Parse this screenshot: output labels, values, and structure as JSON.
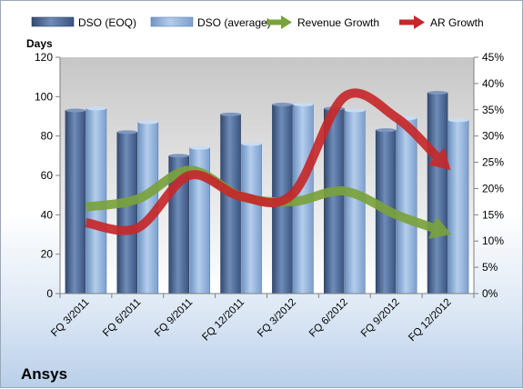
{
  "chart_data": {
    "type": "bar",
    "title": "Ansys",
    "ylabel": "Days",
    "ylim": [
      0,
      120
    ],
    "y_ticks": [
      "0",
      "20",
      "40",
      "60",
      "80",
      "100",
      "120"
    ],
    "y2lim": [
      0,
      45
    ],
    "y2_ticks": [
      "0%",
      "5%",
      "10%",
      "15%",
      "20%",
      "25%",
      "30%",
      "35%",
      "40%",
      "45%"
    ],
    "grid": false,
    "legend_position": "top",
    "categories": [
      "FQ 3/2011",
      "FQ 6/2011",
      "FQ 9/2011",
      "FQ 12/2011",
      "FQ 3/2012",
      "FQ 6/2012",
      "FQ 9/2012",
      "FQ 12/2012"
    ],
    "series": [
      {
        "name": "DSO (EOQ)",
        "type": "bar",
        "axis": "left",
        "color": "#4f6b97",
        "values": [
          93,
          82,
          70,
          91,
          96,
          94,
          83,
          102
        ]
      },
      {
        "name": "DSO (average)",
        "type": "bar",
        "axis": "left",
        "color": "#8fb2dc",
        "values": [
          94,
          87,
          74,
          76,
          96,
          93,
          89,
          88
        ]
      },
      {
        "name": "Revenue Growth",
        "type": "line-arrow",
        "axis": "right",
        "color": "#7aa23c",
        "values": [
          16.5,
          18,
          23.5,
          18.5,
          17.5,
          19.5,
          15,
          11.5
        ]
      },
      {
        "name": "AR Growth",
        "type": "line-arrow",
        "axis": "right",
        "color": "#c5282a",
        "values": [
          13.5,
          12.5,
          22.5,
          18.5,
          19,
          37.5,
          33.5,
          24
        ]
      }
    ]
  }
}
